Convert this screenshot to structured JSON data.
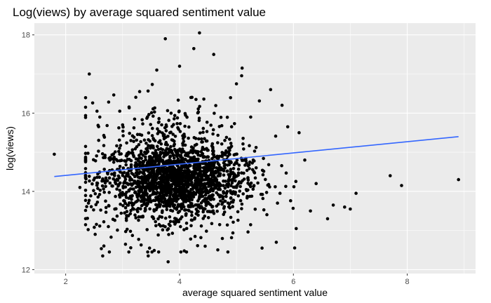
{
  "chart_data": {
    "type": "scatter",
    "title": "Log(views) by average squared sentiment value",
    "xlabel": "average squared sentiment value",
    "ylabel": "log(views)",
    "xlim": [
      1.45,
      9.2
    ],
    "ylim": [
      11.9,
      18.3
    ],
    "x_ticks": [
      2,
      4,
      6,
      8
    ],
    "y_ticks": [
      12,
      14,
      16,
      18
    ],
    "x_tick_labels": [
      "2",
      "4",
      "6",
      "8"
    ],
    "y_tick_labels": [
      "12",
      "14",
      "16",
      "18"
    ],
    "grid": true,
    "panel_background": "#ebebeb",
    "point_color": "#000000",
    "trend_color": "#3366ff",
    "trend_line": {
      "x": [
        1.8,
        8.9
      ],
      "y": [
        14.38,
        15.4
      ]
    },
    "points": {
      "x": [
        1.8,
        2.25,
        2.4,
        2.55,
        2.65,
        2.75,
        2.95,
        3.05,
        3.3,
        3.45,
        3.6,
        3.75,
        3.8,
        4.0,
        4.25,
        4.35,
        4.45,
        4.6,
        4.85,
        5.0,
        5.1,
        5.25,
        5.45,
        5.6,
        5.72,
        5.8,
        6.05,
        6.1,
        6.2,
        6.3,
        6.4,
        6.6,
        6.7,
        6.9,
        7.0,
        7.1,
        7.7,
        7.9,
        8.9,
        5.9,
        5.7,
        3.0,
        2.6,
        4.2
      ],
      "y": [
        14.95,
        14.1,
        13.7,
        16.05,
        12.35,
        13.1,
        16.05,
        12.65,
        16.55,
        12.35,
        17.1,
        17.9,
        12.2,
        17.2,
        17.65,
        18.05,
        12.6,
        17.5,
        12.45,
        16.75,
        17.15,
        15.9,
        12.55,
        16.6,
        13.7,
        16.2,
        13.05,
        15.5,
        14.8,
        13.5,
        14.2,
        13.3,
        13.65,
        13.6,
        13.55,
        13.95,
        14.4,
        14.15,
        14.3,
        15.65,
        12.7,
        15.7,
        15.9,
        16.4
      ],
      "clusters": [
        {
          "cx": 3.9,
          "cy": 14.3,
          "sx": 0.6,
          "sy": 0.45,
          "n": 1500
        },
        {
          "cx": 3.9,
          "cy": 14.5,
          "sx": 0.75,
          "sy": 0.9,
          "n": 650
        }
      ]
    }
  }
}
